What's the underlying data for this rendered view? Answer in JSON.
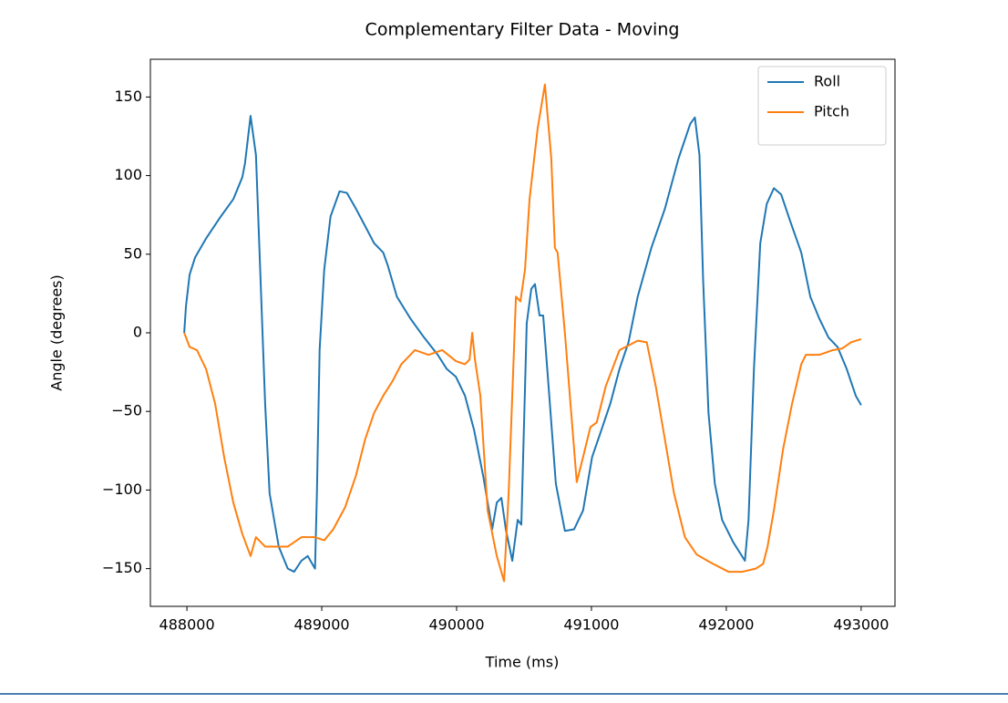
{
  "chart_data": {
    "type": "line",
    "title": "Complementary Filter Data - Moving",
    "xlabel": "Time (ms)",
    "ylabel": "Angle (degrees)",
    "xlim": [
      487729,
      493251
    ],
    "xticks": [
      488000,
      489000,
      490000,
      491000,
      492000,
      493000
    ],
    "ylim": [
      -174,
      174
    ],
    "yticks": [
      {
        "value": -150,
        "label": "−150"
      },
      {
        "value": -100,
        "label": "−100"
      },
      {
        "value": -50,
        "label": "−50"
      },
      0,
      50,
      100,
      150
    ],
    "legend": "upper right",
    "grid": false,
    "series": [
      {
        "name": "Roll",
        "color": "#1f77b4",
        "x": [
          487980,
          487993,
          488020,
          488061,
          488142,
          488243,
          488344,
          488411,
          488431,
          488472,
          488512,
          488546,
          488580,
          488613,
          488681,
          488748,
          488795,
          488849,
          488896,
          488950,
          488964,
          488984,
          489018,
          489065,
          489132,
          489186,
          489253,
          489321,
          489388,
          489456,
          489489,
          489557,
          489658,
          489759,
          489860,
          489927,
          489995,
          490062,
          490130,
          490197,
          490264,
          490298,
          490332,
          490365,
          490413,
          490453,
          490480,
          490520,
          490554,
          490581,
          490615,
          490642,
          490682,
          490736,
          490803,
          490871,
          490938,
          491005,
          491073,
          491140,
          491208,
          491275,
          491343,
          491444,
          491545,
          491646,
          491733,
          491767,
          491801,
          491828,
          491868,
          491915,
          491969,
          492050,
          492138,
          492165,
          492205,
          492252,
          492300,
          492353,
          492407,
          492474,
          492556,
          492623,
          492690,
          492758,
          492825,
          492893,
          492960,
          493000
        ],
        "values": [
          0,
          17,
          37,
          48,
          60,
          73,
          85,
          99,
          108,
          138,
          113,
          34,
          -45,
          -102,
          -136,
          -150,
          -152,
          -145,
          -142,
          -150,
          -102,
          -11,
          40,
          74,
          90,
          89,
          79,
          68,
          57,
          51,
          43,
          23,
          9,
          -3,
          -14,
          -23,
          -28,
          -40,
          -62,
          -91,
          -125,
          -108,
          -105,
          -125,
          -145,
          -119,
          -122,
          6,
          28,
          31,
          11,
          11,
          -34,
          -96,
          -126,
          -125,
          -113,
          -79,
          -62,
          -45,
          -23,
          -6,
          23,
          54,
          79,
          111,
          133,
          137,
          113,
          34,
          -51,
          -96,
          -119,
          -133,
          -145,
          -119,
          -23,
          57,
          82,
          92,
          88,
          71,
          51,
          23,
          9,
          -3,
          -9,
          -23,
          -40,
          -46
        ]
      },
      {
        "name": "Pitch",
        "color": "#ff7f0e",
        "x": [
          487980,
          488020,
          488074,
          488142,
          488209,
          488276,
          488344,
          488411,
          488472,
          488512,
          488580,
          488647,
          488748,
          488849,
          488950,
          489018,
          489085,
          489173,
          489253,
          489321,
          489388,
          489456,
          489523,
          489590,
          489691,
          489792,
          489893,
          489995,
          490062,
          490096,
          490116,
          490136,
          490176,
          490230,
          490298,
          490352,
          490386,
          490440,
          490473,
          490507,
          490541,
          490601,
          490655,
          490702,
          490729,
          490749,
          490803,
          490850,
          490891,
          490938,
          490992,
          491039,
          491106,
          491208,
          491343,
          491410,
          491477,
          491545,
          491612,
          491693,
          491780,
          491881,
          492016,
          492117,
          492219,
          492273,
          492306,
          492353,
          492421,
          492488,
          492556,
          492590,
          492690,
          492791,
          492859,
          492926,
          493000
        ],
        "values": [
          0,
          -9,
          -11,
          -23,
          -45,
          -79,
          -108,
          -128,
          -142,
          -130,
          -136,
          -136,
          -136,
          -130,
          -130,
          -132,
          -125,
          -111,
          -91,
          -68,
          -51,
          -40,
          -31,
          -20,
          -11,
          -14,
          -11,
          -18,
          -20,
          -17,
          0,
          -17,
          -40,
          -113,
          -142,
          -158,
          -102,
          23,
          20,
          40,
          85,
          130,
          158,
          111,
          54,
          51,
          0,
          -51,
          -95,
          -79,
          -60,
          -57,
          -34,
          -11,
          -5,
          -6,
          -34,
          -68,
          -102,
          -130,
          -141,
          -146,
          -152,
          -152,
          -150,
          -147,
          -136,
          -113,
          -74,
          -45,
          -20,
          -14,
          -14,
          -11,
          -10,
          -6,
          -4
        ]
      }
    ]
  }
}
